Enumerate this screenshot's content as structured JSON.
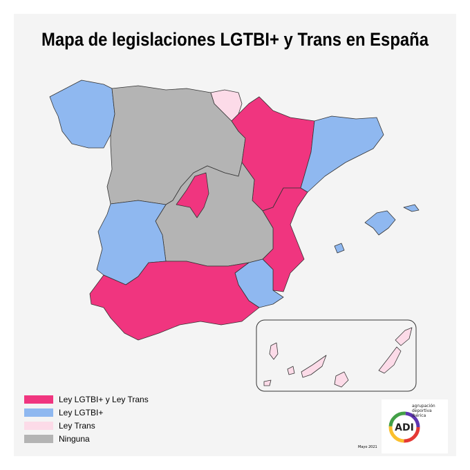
{
  "title": "Mapa de legislaciones LGTBI+ y Trans en España",
  "legend": [
    {
      "label": "Ley LGTBI+ y Ley Trans",
      "color": "#f0357f"
    },
    {
      "label": "Ley LGTBI+",
      "color": "#8fb8f0"
    },
    {
      "label": "Ley Trans",
      "color": "#fcdbe8"
    },
    {
      "label": "Ninguna",
      "color": "#b4b4b4"
    }
  ],
  "date": "Mayo 2021",
  "logo": {
    "text": "agrupación deportiva ibérica",
    "acronym": "ADI"
  }
}
